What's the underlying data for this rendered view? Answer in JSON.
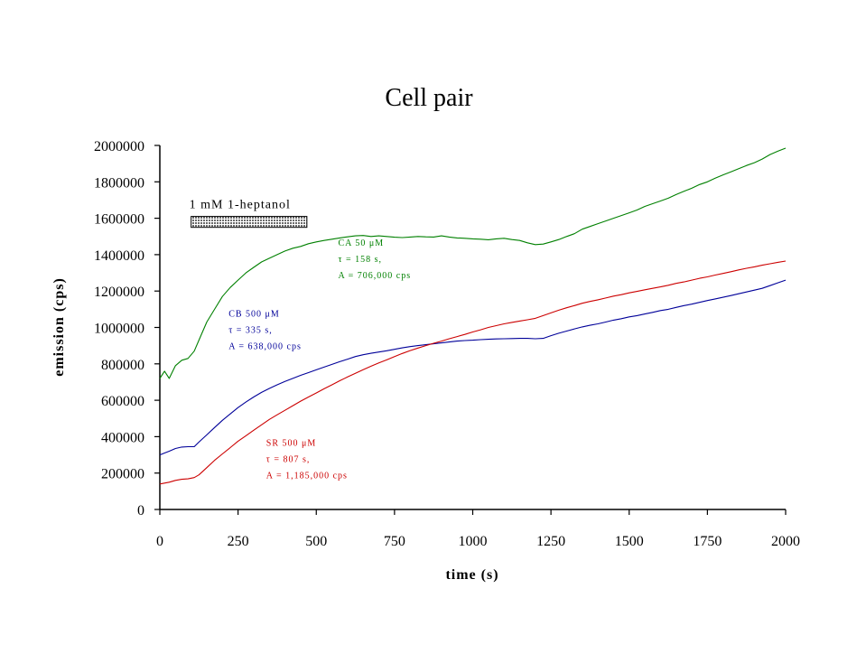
{
  "chart_data": {
    "type": "line",
    "title": "Cell pair",
    "xlabel": "time (s)",
    "ylabel": "emission (cps)",
    "xlim": [
      0,
      2000
    ],
    "ylim": [
      0,
      2000000
    ],
    "x_ticks": [
      0,
      250,
      500,
      750,
      1000,
      1250,
      1500,
      1750,
      2000
    ],
    "x_tick_labels": [
      "0",
      "250",
      "500",
      "750",
      "1000",
      "1250",
      "1500",
      "1750",
      "2000"
    ],
    "y_ticks": [
      0,
      200000,
      400000,
      600000,
      800000,
      1000000,
      1200000,
      1400000,
      1600000,
      1800000,
      2000000
    ],
    "y_tick_labels": [
      "0",
      "200000",
      "400000",
      "600000",
      "800000",
      "1000000",
      "1200000",
      "1400000",
      "1600000",
      "1800000",
      "2000000"
    ],
    "grid": false,
    "stimulus": {
      "label": "1 mM 1-heptanol",
      "x_start": 100,
      "x_end": 470,
      "y_low": 1550000,
      "y_high": 1610000
    },
    "series": [
      {
        "name": "CA",
        "color": "#008000",
        "annotation": [
          "CA 50 μM",
          "τ = 158 s,",
          "A = 706,000 cps"
        ],
        "annotation_x": 570,
        "annotation_y": 1450000,
        "points": [
          [
            0,
            720000
          ],
          [
            15,
            760000
          ],
          [
            30,
            720000
          ],
          [
            50,
            790000
          ],
          [
            70,
            820000
          ],
          [
            90,
            830000
          ],
          [
            110,
            870000
          ],
          [
            130,
            950000
          ],
          [
            150,
            1030000
          ],
          [
            175,
            1100000
          ],
          [
            200,
            1170000
          ],
          [
            225,
            1220000
          ],
          [
            250,
            1260000
          ],
          [
            275,
            1300000
          ],
          [
            300,
            1330000
          ],
          [
            325,
            1360000
          ],
          [
            350,
            1380000
          ],
          [
            375,
            1400000
          ],
          [
            400,
            1420000
          ],
          [
            425,
            1435000
          ],
          [
            450,
            1445000
          ],
          [
            475,
            1460000
          ],
          [
            500,
            1470000
          ],
          [
            525,
            1478000
          ],
          [
            550,
            1485000
          ],
          [
            575,
            1492000
          ],
          [
            600,
            1498000
          ],
          [
            625,
            1503000
          ],
          [
            650,
            1505000
          ],
          [
            675,
            1500000
          ],
          [
            700,
            1503000
          ],
          [
            725,
            1500000
          ],
          [
            750,
            1496000
          ],
          [
            775,
            1494000
          ],
          [
            800,
            1497000
          ],
          [
            825,
            1500000
          ],
          [
            850,
            1498000
          ],
          [
            875,
            1497000
          ],
          [
            900,
            1503000
          ],
          [
            925,
            1497000
          ],
          [
            950,
            1492000
          ],
          [
            975,
            1490000
          ],
          [
            1000,
            1487000
          ],
          [
            1025,
            1485000
          ],
          [
            1050,
            1482000
          ],
          [
            1075,
            1487000
          ],
          [
            1100,
            1490000
          ],
          [
            1125,
            1483000
          ],
          [
            1150,
            1478000
          ],
          [
            1175,
            1465000
          ],
          [
            1200,
            1455000
          ],
          [
            1225,
            1458000
          ],
          [
            1250,
            1470000
          ],
          [
            1275,
            1483000
          ],
          [
            1300,
            1500000
          ],
          [
            1325,
            1515000
          ],
          [
            1350,
            1540000
          ],
          [
            1375,
            1555000
          ],
          [
            1400,
            1570000
          ],
          [
            1425,
            1585000
          ],
          [
            1450,
            1600000
          ],
          [
            1475,
            1615000
          ],
          [
            1500,
            1630000
          ],
          [
            1525,
            1645000
          ],
          [
            1550,
            1665000
          ],
          [
            1575,
            1680000
          ],
          [
            1600,
            1695000
          ],
          [
            1625,
            1710000
          ],
          [
            1650,
            1730000
          ],
          [
            1675,
            1748000
          ],
          [
            1700,
            1765000
          ],
          [
            1725,
            1785000
          ],
          [
            1750,
            1800000
          ],
          [
            1775,
            1820000
          ],
          [
            1800,
            1838000
          ],
          [
            1825,
            1855000
          ],
          [
            1850,
            1872000
          ],
          [
            1875,
            1890000
          ],
          [
            1900,
            1905000
          ],
          [
            1925,
            1925000
          ],
          [
            1950,
            1950000
          ],
          [
            1975,
            1968000
          ],
          [
            2000,
            1985000
          ]
        ]
      },
      {
        "name": "CB",
        "color": "#000099",
        "annotation": [
          "CB 500 μM",
          "τ = 335 s,",
          "A = 638,000 cps"
        ],
        "annotation_x": 220,
        "annotation_y": 1060000,
        "points": [
          [
            0,
            300000
          ],
          [
            15,
            310000
          ],
          [
            30,
            320000
          ],
          [
            50,
            335000
          ],
          [
            70,
            343000
          ],
          [
            90,
            345000
          ],
          [
            110,
            345000
          ],
          [
            125,
            370000
          ],
          [
            150,
            410000
          ],
          [
            175,
            450000
          ],
          [
            200,
            490000
          ],
          [
            225,
            525000
          ],
          [
            250,
            560000
          ],
          [
            275,
            590000
          ],
          [
            300,
            618000
          ],
          [
            325,
            643000
          ],
          [
            350,
            665000
          ],
          [
            375,
            685000
          ],
          [
            400,
            703000
          ],
          [
            425,
            720000
          ],
          [
            450,
            737000
          ],
          [
            475,
            752000
          ],
          [
            500,
            767000
          ],
          [
            525,
            782000
          ],
          [
            550,
            797000
          ],
          [
            575,
            812000
          ],
          [
            600,
            826000
          ],
          [
            625,
            840000
          ],
          [
            650,
            850000
          ],
          [
            675,
            858000
          ],
          [
            700,
            865000
          ],
          [
            725,
            872000
          ],
          [
            750,
            880000
          ],
          [
            775,
            888000
          ],
          [
            800,
            895000
          ],
          [
            825,
            900000
          ],
          [
            850,
            905000
          ],
          [
            875,
            910000
          ],
          [
            900,
            915000
          ],
          [
            925,
            920000
          ],
          [
            950,
            925000
          ],
          [
            975,
            928000
          ],
          [
            1000,
            930000
          ],
          [
            1025,
            933000
          ],
          [
            1050,
            935000
          ],
          [
            1075,
            937000
          ],
          [
            1100,
            938000
          ],
          [
            1125,
            939000
          ],
          [
            1150,
            940000
          ],
          [
            1175,
            940000
          ],
          [
            1200,
            938000
          ],
          [
            1225,
            940000
          ],
          [
            1250,
            955000
          ],
          [
            1275,
            968000
          ],
          [
            1300,
            980000
          ],
          [
            1325,
            992000
          ],
          [
            1350,
            1003000
          ],
          [
            1375,
            1012000
          ],
          [
            1400,
            1020000
          ],
          [
            1425,
            1030000
          ],
          [
            1450,
            1040000
          ],
          [
            1475,
            1048000
          ],
          [
            1500,
            1058000
          ],
          [
            1525,
            1065000
          ],
          [
            1550,
            1074000
          ],
          [
            1575,
            1083000
          ],
          [
            1600,
            1093000
          ],
          [
            1625,
            1100000
          ],
          [
            1650,
            1110000
          ],
          [
            1675,
            1120000
          ],
          [
            1700,
            1128000
          ],
          [
            1725,
            1138000
          ],
          [
            1750,
            1148000
          ],
          [
            1775,
            1157000
          ],
          [
            1800,
            1166000
          ],
          [
            1825,
            1175000
          ],
          [
            1850,
            1185000
          ],
          [
            1875,
            1195000
          ],
          [
            1900,
            1205000
          ],
          [
            1925,
            1215000
          ],
          [
            1950,
            1230000
          ],
          [
            1975,
            1245000
          ],
          [
            2000,
            1260000
          ]
        ]
      },
      {
        "name": "SR",
        "color": "#cc0000",
        "annotation": [
          "SR 500 μM",
          "τ = 807 s,",
          "A = 1,185,000 cps"
        ],
        "annotation_x": 340,
        "annotation_y": 350000,
        "points": [
          [
            0,
            140000
          ],
          [
            15,
            145000
          ],
          [
            30,
            150000
          ],
          [
            50,
            160000
          ],
          [
            70,
            166000
          ],
          [
            90,
            168000
          ],
          [
            110,
            175000
          ],
          [
            125,
            190000
          ],
          [
            150,
            230000
          ],
          [
            175,
            270000
          ],
          [
            200,
            305000
          ],
          [
            225,
            340000
          ],
          [
            250,
            375000
          ],
          [
            275,
            405000
          ],
          [
            300,
            435000
          ],
          [
            325,
            465000
          ],
          [
            350,
            495000
          ],
          [
            375,
            520000
          ],
          [
            400,
            545000
          ],
          [
            425,
            570000
          ],
          [
            450,
            595000
          ],
          [
            475,
            618000
          ],
          [
            500,
            640000
          ],
          [
            525,
            663000
          ],
          [
            550,
            685000
          ],
          [
            575,
            707000
          ],
          [
            600,
            728000
          ],
          [
            625,
            748000
          ],
          [
            650,
            768000
          ],
          [
            675,
            787000
          ],
          [
            700,
            805000
          ],
          [
            725,
            822000
          ],
          [
            750,
            840000
          ],
          [
            775,
            857000
          ],
          [
            800,
            873000
          ],
          [
            825,
            887000
          ],
          [
            850,
            900000
          ],
          [
            875,
            913000
          ],
          [
            900,
            925000
          ],
          [
            925,
            938000
          ],
          [
            950,
            950000
          ],
          [
            975,
            962000
          ],
          [
            1000,
            975000
          ],
          [
            1025,
            987000
          ],
          [
            1050,
            1000000
          ],
          [
            1075,
            1010000
          ],
          [
            1100,
            1020000
          ],
          [
            1125,
            1028000
          ],
          [
            1150,
            1035000
          ],
          [
            1175,
            1042000
          ],
          [
            1200,
            1050000
          ],
          [
            1225,
            1065000
          ],
          [
            1250,
            1080000
          ],
          [
            1275,
            1095000
          ],
          [
            1300,
            1108000
          ],
          [
            1325,
            1120000
          ],
          [
            1350,
            1133000
          ],
          [
            1375,
            1143000
          ],
          [
            1400,
            1152000
          ],
          [
            1425,
            1162000
          ],
          [
            1450,
            1172000
          ],
          [
            1475,
            1180000
          ],
          [
            1500,
            1190000
          ],
          [
            1525,
            1198000
          ],
          [
            1550,
            1207000
          ],
          [
            1575,
            1215000
          ],
          [
            1600,
            1223000
          ],
          [
            1625,
            1232000
          ],
          [
            1650,
            1242000
          ],
          [
            1675,
            1250000
          ],
          [
            1700,
            1260000
          ],
          [
            1725,
            1270000
          ],
          [
            1750,
            1278000
          ],
          [
            1775,
            1288000
          ],
          [
            1800,
            1297000
          ],
          [
            1825,
            1306000
          ],
          [
            1850,
            1316000
          ],
          [
            1875,
            1325000
          ],
          [
            1900,
            1333000
          ],
          [
            1925,
            1342000
          ],
          [
            1950,
            1350000
          ],
          [
            1975,
            1358000
          ],
          [
            2000,
            1365000
          ]
        ]
      }
    ]
  }
}
